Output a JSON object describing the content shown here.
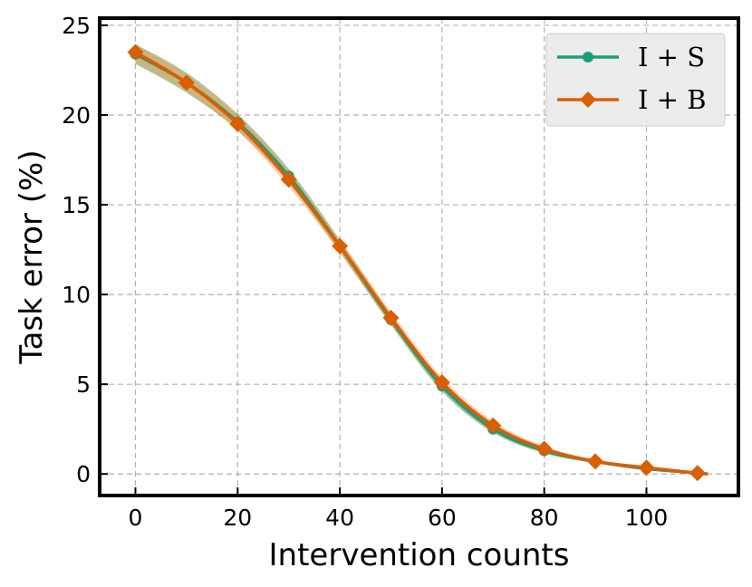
{
  "chart_data": {
    "type": "line",
    "title": "",
    "xlabel": "Intervention counts",
    "ylabel": "Task error (%)",
    "xlim": [
      -7,
      118
    ],
    "ylim": [
      -1.2,
      25.4
    ],
    "xticks": [
      0,
      20,
      40,
      60,
      80,
      100
    ],
    "yticks": [
      0,
      5,
      10,
      15,
      20,
      25
    ],
    "grid": true,
    "legend_position": "top-right",
    "series": [
      {
        "name": "I + S",
        "color": "#1b9e77",
        "band_color": "#7a8a3a",
        "marker": "circle",
        "x": [
          0,
          10,
          20,
          30,
          40,
          50,
          60,
          70,
          80,
          90,
          100,
          110
        ],
        "values": [
          23.4,
          21.8,
          19.6,
          16.6,
          12.7,
          8.6,
          4.9,
          2.5,
          1.3,
          0.7,
          0.3,
          0.05
        ],
        "band": [
          0.55,
          0.55,
          0.45,
          0.4,
          0.35,
          0.3,
          0.3,
          0.2,
          0.15,
          0.1,
          0.1,
          0.05
        ]
      },
      {
        "name": "I + B",
        "color": "#d95f02",
        "band_color": "#f0a060",
        "marker": "diamond",
        "x": [
          0,
          10,
          20,
          30,
          40,
          50,
          60,
          70,
          80,
          90,
          100,
          110
        ],
        "values": [
          23.5,
          21.8,
          19.5,
          16.4,
          12.7,
          8.7,
          5.1,
          2.7,
          1.4,
          0.7,
          0.35,
          0.05
        ],
        "band": [
          0.4,
          0.4,
          0.4,
          0.4,
          0.35,
          0.35,
          0.3,
          0.25,
          0.15,
          0.1,
          0.1,
          0.05
        ]
      }
    ]
  }
}
